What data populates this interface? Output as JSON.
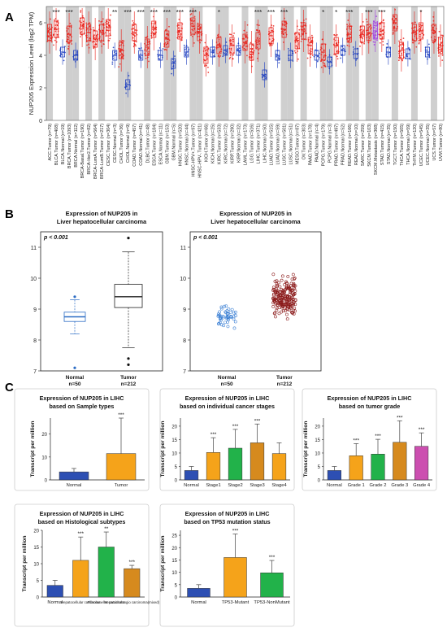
{
  "panels": {
    "a": "A",
    "b": "B",
    "c": "C"
  },
  "colors": {
    "tumor": "#e8231c",
    "normal": "#1f3fbf",
    "metastasis": "#a03ce0",
    "shade": "#cfcfcf",
    "blueBar": "#2d4fb3",
    "orangeBar": "#f5a31a",
    "greenBar": "#22b24a",
    "darkOrangeBar": "#d68a1e",
    "pinkBar": "#cc4fb0",
    "dots": "#8b1a1a",
    "normalDots": "#3a7fd4"
  },
  "chart_data": [
    {
      "type": "box",
      "id": "A",
      "ylabel": "NUP205 Expression Level (log2 TPM)",
      "yticks": [
        "0",
        "2",
        "4",
        "6"
      ],
      "ylim": [
        0,
        7
      ],
      "categories": [
        {
          "label": "ACC.Tumor (n=79)",
          "kind": "tumor",
          "median": 5.4,
          "shade": true,
          "sig": ""
        },
        {
          "label": "BLCA.Tumor (n=408)",
          "kind": "tumor",
          "median": 5.6,
          "shade": false,
          "sig": "***"
        },
        {
          "label": "BLCA.Normal (n=19)",
          "kind": "normal",
          "median": 4.2,
          "shade": false,
          "sig": ""
        },
        {
          "label": "BRCA.Tumor (n=1093)",
          "kind": "tumor",
          "median": 5.3,
          "shade": true,
          "sig": "***"
        },
        {
          "label": "BRCA.Normal (n=112)",
          "kind": "normal",
          "median": 4.0,
          "shade": true,
          "sig": ""
        },
        {
          "label": "BRCA-Basal.Tumor (n=190)",
          "kind": "tumor",
          "median": 5.8,
          "shade": false,
          "sig": ""
        },
        {
          "label": "BRCA-Her2.Tumor (n=82)",
          "kind": "tumor",
          "median": 5.4,
          "shade": true,
          "sig": ""
        },
        {
          "label": "BRCA-LumA.Tumor (n=564)",
          "kind": "tumor",
          "median": 5.0,
          "shade": false,
          "sig": ""
        },
        {
          "label": "BRCA-LumB.Tumor (n=217)",
          "kind": "tumor",
          "median": 5.4,
          "shade": true,
          "sig": ""
        },
        {
          "label": "CESC.Tumor (n=304)",
          "kind": "tumor",
          "median": 5.7,
          "shade": false,
          "sig": ""
        },
        {
          "label": "CESC.Normal (n=3)",
          "kind": "normal",
          "median": 4.0,
          "shade": false,
          "sig": "**"
        },
        {
          "label": "CHOL.Tumor (n=36)",
          "kind": "tumor",
          "median": 4.3,
          "shade": true,
          "sig": ""
        },
        {
          "label": "CHOL.Normal (n=9)",
          "kind": "normal",
          "median": 2.2,
          "shade": true,
          "sig": "***"
        },
        {
          "label": "COAD.Tumor (n=457)",
          "kind": "tumor",
          "median": 5.4,
          "shade": false,
          "sig": ""
        },
        {
          "label": "COAD.Normal (n=41)",
          "kind": "normal",
          "median": 4.0,
          "shade": false,
          "sig": "***"
        },
        {
          "label": "DLBC.Tumor (n=48)",
          "kind": "tumor",
          "median": 4.5,
          "shade": true,
          "sig": ""
        },
        {
          "label": "ESCA.Tumor (n=184)",
          "kind": "tumor",
          "median": 5.6,
          "shade": false,
          "sig": "***"
        },
        {
          "label": "ESCA.Normal (n=11)",
          "kind": "normal",
          "median": 4.0,
          "shade": false,
          "sig": ""
        },
        {
          "label": "GBM.Tumor (n=153)",
          "kind": "tumor",
          "median": 5.0,
          "shade": true,
          "sig": "***"
        },
        {
          "label": "GBM.Normal (n=5)",
          "kind": "normal",
          "median": 3.5,
          "shade": true,
          "sig": ""
        },
        {
          "label": "HNSC.Tumor (n=520)",
          "kind": "tumor",
          "median": 5.5,
          "shade": false,
          "sig": "***"
        },
        {
          "label": "HNSC.Normal (n=44)",
          "kind": "normal",
          "median": 4.2,
          "shade": false,
          "sig": ""
        },
        {
          "label": "HNSC-HPV+.Tumor (n=97)",
          "kind": "tumor",
          "median": 5.8,
          "shade": true,
          "sig": "***"
        },
        {
          "label": "HNSC-HPV-.Tumor (n=421)",
          "kind": "tumor",
          "median": 5.4,
          "shade": true,
          "sig": ""
        },
        {
          "label": "KICH.Tumor (n=66)",
          "kind": "tumor",
          "median": 4.0,
          "shade": false,
          "sig": ""
        },
        {
          "label": "KICH.Normal (n=25)",
          "kind": "normal",
          "median": 4.2,
          "shade": false,
          "sig": ""
        },
        {
          "label": "KIRC.Tumor (n=533)",
          "kind": "tumor",
          "median": 4.6,
          "shade": true,
          "sig": "*"
        },
        {
          "label": "KIRC.Normal (n=72)",
          "kind": "normal",
          "median": 4.3,
          "shade": true,
          "sig": ""
        },
        {
          "label": "KIRP.Tumor (n=290)",
          "kind": "tumor",
          "median": 4.6,
          "shade": false,
          "sig": ""
        },
        {
          "label": "KIRP.Normal (n=32)",
          "kind": "normal",
          "median": 4.3,
          "shade": false,
          "sig": ""
        },
        {
          "label": "LAML.Tumor (n=173)",
          "kind": "tumor",
          "median": 4.8,
          "shade": true,
          "sig": ""
        },
        {
          "label": "LGG.Tumor (n=516)",
          "kind": "tumor",
          "median": 4.2,
          "shade": false,
          "sig": ""
        },
        {
          "label": "LIHC.Tumor (n=371)",
          "kind": "tumor",
          "median": 4.9,
          "shade": true,
          "sig": "***"
        },
        {
          "label": "LIHC.Normal (n=50)",
          "kind": "normal",
          "median": 2.8,
          "shade": true,
          "sig": ""
        },
        {
          "label": "LUAD.Tumor (n=515)",
          "kind": "tumor",
          "median": 5.2,
          "shade": false,
          "sig": "***"
        },
        {
          "label": "LUAD.Normal (n=59)",
          "kind": "normal",
          "median": 4.0,
          "shade": false,
          "sig": ""
        },
        {
          "label": "LUSC.Tumor (n=501)",
          "kind": "tumor",
          "median": 5.6,
          "shade": true,
          "sig": "***"
        },
        {
          "label": "LUSC.Normal (n=51)",
          "kind": "normal",
          "median": 4.0,
          "shade": true,
          "sig": ""
        },
        {
          "label": "MESO.Tumor (n=87)",
          "kind": "tumor",
          "median": 4.9,
          "shade": false,
          "sig": ""
        },
        {
          "label": "OV.Tumor (n=303)",
          "kind": "tumor",
          "median": 5.5,
          "shade": true,
          "sig": ""
        },
        {
          "label": "PAAD.Tumor (n=178)",
          "kind": "tumor",
          "median": 4.6,
          "shade": false,
          "sig": ""
        },
        {
          "label": "PAAD.Normal (n=4)",
          "kind": "normal",
          "median": 4.0,
          "shade": false,
          "sig": ""
        },
        {
          "label": "PCPG.Tumor (n=179)",
          "kind": "tumor",
          "median": 4.2,
          "shade": true,
          "sig": "*"
        },
        {
          "label": "PCPG.Normal (n=3)",
          "kind": "normal",
          "median": 3.6,
          "shade": true,
          "sig": ""
        },
        {
          "label": "PRAD.Tumor (n=497)",
          "kind": "tumor",
          "median": 4.6,
          "shade": false,
          "sig": "*"
        },
        {
          "label": "PRAD.Normal (n=52)",
          "kind": "normal",
          "median": 4.3,
          "shade": false,
          "sig": ""
        },
        {
          "label": "READ.Tumor (n=166)",
          "kind": "tumor",
          "median": 5.3,
          "shade": true,
          "sig": "***"
        },
        {
          "label": "READ.Normal (n=10)",
          "kind": "normal",
          "median": 4.1,
          "shade": true,
          "sig": ""
        },
        {
          "label": "SARC.Tumor (n=259)",
          "kind": "tumor",
          "median": 5.3,
          "shade": false,
          "sig": ""
        },
        {
          "label": "SKCM.Tumor (n=103)",
          "kind": "tumor",
          "median": 5.4,
          "shade": true,
          "sig": "***"
        },
        {
          "label": "SKCM.Metastasis (n=368)",
          "kind": "metastasis",
          "median": 5.5,
          "shade": true,
          "sig": ""
        },
        {
          "label": "STAD.Tumor (n=415)",
          "kind": "tumor",
          "median": 5.5,
          "shade": false,
          "sig": "***"
        },
        {
          "label": "STAD.Normal (n=35)",
          "kind": "normal",
          "median": 4.2,
          "shade": false,
          "sig": ""
        },
        {
          "label": "TGCT.Tumor (n=150)",
          "kind": "tumor",
          "median": 6.0,
          "shade": true,
          "sig": ""
        },
        {
          "label": "THCA.Tumor (n=505)",
          "kind": "tumor",
          "median": 4.3,
          "shade": false,
          "sig": ""
        },
        {
          "label": "THCA.Normal (n=59)",
          "kind": "normal",
          "median": 4.1,
          "shade": false,
          "sig": ""
        },
        {
          "label": "THYM.Tumor (n=120)",
          "kind": "tumor",
          "median": 5.4,
          "shade": true,
          "sig": ""
        },
        {
          "label": "UCEC.Tumor (n=545)",
          "kind": "tumor",
          "median": 5.5,
          "shade": false,
          "sig": "*"
        },
        {
          "label": "UCEC.Normal (n=35)",
          "kind": "normal",
          "median": 4.2,
          "shade": false,
          "sig": ""
        },
        {
          "label": "UCS.Tumor (n=57)",
          "kind": "tumor",
          "median": 5.4,
          "shade": true,
          "sig": ""
        },
        {
          "label": "UVM.Tumor (n=80)",
          "kind": "tumor",
          "median": 4.6,
          "shade": false,
          "sig": ""
        }
      ]
    },
    {
      "type": "box",
      "id": "B1",
      "title": "Expression of NUP205 in\nLiver hepatocellular carcinoma",
      "pvalue": "p < 0.001",
      "yticks": [
        "7",
        "8",
        "9",
        "10",
        "11"
      ],
      "ylim": [
        7,
        11.5
      ],
      "groups": [
        {
          "name": "Normal",
          "n": "n=50",
          "q1": 8.6,
          "median": 8.75,
          "q3": 8.9,
          "lower": 8.2,
          "upper": 9.3,
          "outliers": [
            7.1,
            9.4
          ]
        },
        {
          "name": "Tumor",
          "n": "n=212",
          "q1": 9.05,
          "median": 9.4,
          "q3": 9.8,
          "lower": 7.75,
          "upper": 10.85,
          "outliers": [
            7.2,
            7.4,
            11.3
          ]
        }
      ]
    },
    {
      "type": "scatter",
      "id": "B2",
      "title": "Expression of NUP205 in\nLiver hepatocellular carcinoma",
      "pvalue": "p < 0.001",
      "yticks": [
        "7",
        "8",
        "9",
        "10",
        "11"
      ],
      "ylim": [
        7,
        11.5
      ],
      "groups": [
        {
          "name": "Normal",
          "n": "n=50"
        },
        {
          "name": "Tumor",
          "n": "n=212"
        }
      ]
    },
    {
      "type": "bar",
      "id": "C1",
      "title": "Expression of NUP205 in LIHC\nbased on Sample types",
      "ylabel": "Transcript per million",
      "yticks": [
        "0",
        "10",
        "20"
      ],
      "ylim": [
        0,
        27
      ],
      "categories": [
        "Normal",
        "Tumor"
      ],
      "values": [
        3.5,
        11.5
      ],
      "errors": [
        1.5,
        15.5
      ],
      "sig": [
        "",
        "***"
      ]
    },
    {
      "type": "bar",
      "id": "C2",
      "title": "Expression of NUP205 in LIHC\nbased on individual cancer stages",
      "ylabel": "Transcript per million",
      "yticks": [
        "0",
        "5",
        "10",
        "15",
        "20"
      ],
      "ylim": [
        0,
        23
      ],
      "categories": [
        "Normal",
        "Stage1",
        "Stage2",
        "Stage3",
        "Stage4"
      ],
      "values": [
        3.5,
        10.2,
        11.8,
        13.8,
        9.8
      ],
      "errors": [
        1.5,
        5.5,
        7.0,
        7.0,
        4.0
      ],
      "sig": [
        "",
        "***",
        "***",
        "***",
        ""
      ]
    },
    {
      "type": "bar",
      "id": "C3",
      "title": "Expression of NUP205 in LIHC\nbased on tumor grade",
      "ylabel": "Transcript per million",
      "yticks": [
        "0",
        "5",
        "10",
        "15",
        "20"
      ],
      "ylim": [
        0,
        23
      ],
      "categories": [
        "Normal",
        "Grade 1",
        "Grade 2",
        "Grade 3",
        "Grade 4"
      ],
      "values": [
        3.5,
        9.0,
        9.6,
        14.0,
        12.5
      ],
      "errors": [
        1.5,
        4.5,
        5.5,
        8.0,
        5.0
      ],
      "sig": [
        "",
        "***",
        "***",
        "***",
        "***"
      ]
    },
    {
      "type": "bar",
      "id": "C4",
      "title": "Expression of NUP205 in LIHC\nbased on Histological subtypes",
      "ylabel": "Transcript per million",
      "yticks": [
        "0",
        "5",
        "10",
        "15",
        "20"
      ],
      "ylim": [
        0,
        20
      ],
      "categories": [
        "Normal",
        "Hepatocellular carcinoma",
        "Fibrolamellar carcinoma",
        "Hepatocholangio carcinoma(mixed)"
      ],
      "values": [
        3.5,
        11.0,
        15.0,
        8.5
      ],
      "errors": [
        1.5,
        7.0,
        4.5,
        1.0
      ],
      "sig": [
        "",
        "***",
        "**",
        "***"
      ]
    },
    {
      "type": "bar",
      "id": "C5",
      "title": "Expression of NUP205 in LIHC\nbased on TP53 mutation status",
      "ylabel": "Transcript per million",
      "yticks": [
        "0",
        "5",
        "10",
        "15",
        "20",
        "25"
      ],
      "ylim": [
        0,
        27
      ],
      "categories": [
        "Normal",
        "TP53-Mutant",
        "TP53-NonMutant"
      ],
      "values": [
        3.5,
        16.0,
        9.8
      ],
      "errors": [
        1.5,
        9.5,
        5.0
      ],
      "sig": [
        "",
        "***",
        "***"
      ]
    }
  ]
}
